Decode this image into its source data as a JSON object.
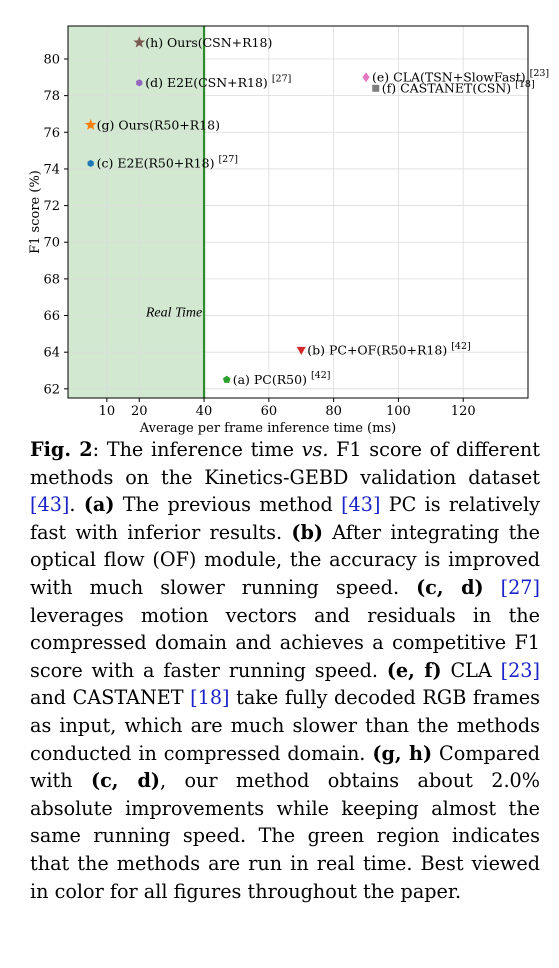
{
  "chart_data": {
    "type": "scatter",
    "xlabel": "Average per frame inference time (ms)",
    "ylabel": "F1 score (%)",
    "xlim": [
      -2,
      140
    ],
    "ylim": [
      61.5,
      81.8
    ],
    "xticks": [
      10,
      20,
      40,
      60,
      80,
      100,
      120
    ],
    "yticks": [
      62,
      64,
      66,
      68,
      70,
      72,
      74,
      76,
      78,
      80
    ],
    "grid": true,
    "real_time_threshold_ms": 40,
    "real_time_label": "Real Time",
    "colors": {
      "real_time_region": "#d2e8d1",
      "real_time_line": "#2f8c2c"
    },
    "points": [
      {
        "id": "h",
        "label": "(h) Ours(CSN+R18)",
        "ref": "",
        "x": 20,
        "y": 80.9,
        "marker": "star",
        "color": "#7a5a50",
        "label_color": "#8a3fa5"
      },
      {
        "id": "d",
        "label": "(d) E2E(CSN+R18)",
        "ref": "[27]",
        "x": 20,
        "y": 78.7,
        "marker": "hexagon",
        "color": "#9467bd",
        "label_color": "#000000"
      },
      {
        "id": "g",
        "label": "(g) Ours(R50+R18)",
        "ref": "",
        "x": 5,
        "y": 76.4,
        "marker": "star",
        "color": "#ff7f0e",
        "label_color": "#8a3fa5"
      },
      {
        "id": "c",
        "label": "(c) E2E(R50+R18)",
        "ref": "[27]",
        "x": 5,
        "y": 74.3,
        "marker": "hexagon",
        "color": "#1f77b4",
        "label_color": "#000000"
      },
      {
        "id": "e",
        "label": "(e) CLA(TSN+SlowFast)",
        "ref": "[23]",
        "x": 90,
        "y": 79.0,
        "marker": "diamond",
        "color": "#e377c2",
        "label_color": "#000000"
      },
      {
        "id": "f",
        "label": "(f) CASTANET(CSN)",
        "ref": "[18]",
        "x": 93,
        "y": 78.4,
        "marker": "square",
        "color": "#7f7f7f",
        "label_color": "#000000"
      },
      {
        "id": "b",
        "label": "(b) PC+OF(R50+R18)",
        "ref": "[42]",
        "x": 70,
        "y": 64.1,
        "marker": "triangle-down",
        "color": "#d62728",
        "label_color": "#000000"
      },
      {
        "id": "a",
        "label": "(a) PC(R50)",
        "ref": "[42]",
        "x": 47,
        "y": 62.5,
        "marker": "pentagon",
        "color": "#2ca02c",
        "label_color": "#000000"
      }
    ]
  },
  "caption": [
    {
      "t": "Fig. 2",
      "s": "b"
    },
    {
      "t": ": The inference time "
    },
    {
      "t": "vs.",
      "s": "it"
    },
    {
      "t": " F1 score of different methods on the Kinetics-GEBD validation dataset "
    },
    {
      "t": "[",
      "s": "ref"
    },
    {
      "t": "43",
      "s": "ref"
    },
    {
      "t": "]",
      "s": "ref"
    },
    {
      "t": ". "
    },
    {
      "t": "(a)",
      "s": "b"
    },
    {
      "t": " The previous method "
    },
    {
      "t": "[43]",
      "s": "ref"
    },
    {
      "t": " PC is relatively fast with inferior results. "
    },
    {
      "t": "(b)",
      "s": "b"
    },
    {
      "t": " After integrating the optical flow (OF) module, the accuracy is improved with much slower running speed. "
    },
    {
      "t": "(c, d)",
      "s": "b"
    },
    {
      "t": " "
    },
    {
      "t": "[27]",
      "s": "ref"
    },
    {
      "t": " leverages motion vectors and residuals in the compressed domain and achieves a competi­tive F1 score with a faster running speed. "
    },
    {
      "t": "(e, f)",
      "s": "b"
    },
    {
      "t": " CLA "
    },
    {
      "t": "[23]",
      "s": "ref"
    },
    {
      "t": " and CASTANET "
    },
    {
      "t": "[18]",
      "s": "ref"
    },
    {
      "t": " take fully decoded RGB frames as input, which are much slower than the methods conducted in compressed domain. "
    },
    {
      "t": "(g, h)",
      "s": "b"
    },
    {
      "t": " Compared with "
    },
    {
      "t": "(c, d)",
      "s": "b"
    },
    {
      "t": ", our method obtains about 2.0% absolute improvements while keeping almost the same running speed. The green region indicates that the methods are run in real time. Best viewed in color for all figures throughout the paper."
    }
  ]
}
